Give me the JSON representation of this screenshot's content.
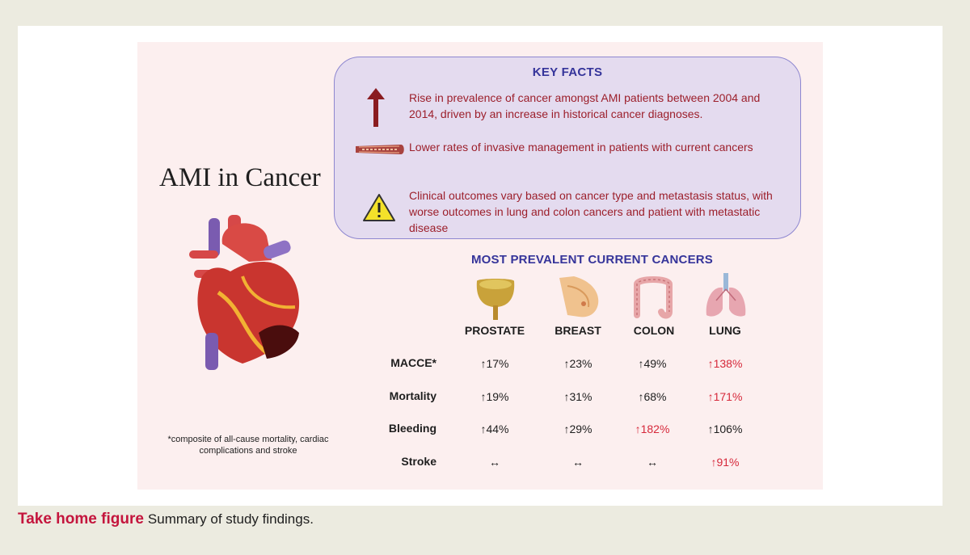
{
  "figure": {
    "title": "AMI in Cancer",
    "footnote": "*composite of all-cause mortality, cardiac complications and stroke",
    "key_facts": {
      "heading": "KEY FACTS",
      "items": [
        {
          "icon": "up-arrow-icon",
          "text": "Rise in prevalence of cancer amongst AMI patients between 2004 and 2014, driven by an increase in historical cancer diagnoses."
        },
        {
          "icon": "artery-icon",
          "text": "Lower rates of invasive management  in patients with current cancers"
        },
        {
          "icon": "warning-icon",
          "text": "Clinical outcomes vary based on cancer type and metastasis status, with worse outcomes in lung and colon cancers and patient with metastatic disease"
        }
      ]
    },
    "cancers": {
      "heading": "MOST PREVALENT CURRENT CANCERS",
      "columns": [
        "PROSTATE",
        "BREAST",
        "COLON",
        "LUNG"
      ],
      "rows": [
        {
          "label": "MACCE*",
          "cells": [
            "↑17%",
            "↑23%",
            "↑49%",
            "↑138%"
          ],
          "highlight": [
            false,
            false,
            false,
            true
          ]
        },
        {
          "label": "Mortality",
          "cells": [
            "↑19%",
            "↑31%",
            "↑68%",
            "↑171%"
          ],
          "highlight": [
            false,
            false,
            false,
            true
          ]
        },
        {
          "label": "Bleeding",
          "cells": [
            "↑44%",
            "↑29%",
            "↑182%",
            "↑106%"
          ],
          "highlight": [
            false,
            false,
            true,
            false
          ]
        },
        {
          "label": "Stroke",
          "cells": [
            "↔",
            "↔",
            "↔",
            "↑91%"
          ],
          "highlight": [
            false,
            false,
            false,
            true
          ]
        }
      ]
    },
    "colors": {
      "heading": "#35349a",
      "fact_text": "#9c1f2b",
      "highlight": "#d6283a",
      "caption_label": "#c4153d"
    }
  },
  "caption": {
    "label": "Take home figure",
    "text": "Summary of study findings."
  }
}
